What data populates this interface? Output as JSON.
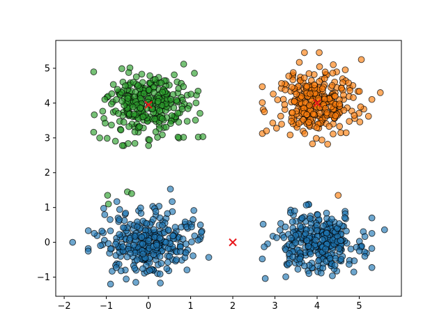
{
  "chart_data": {
    "type": "scatter",
    "title": "",
    "xlabel": "",
    "ylabel": "",
    "xlim": [
      -2.2,
      6.0
    ],
    "ylim": [
      -1.55,
      5.8
    ],
    "xticks": [
      -2,
      -1,
      0,
      1,
      2,
      3,
      4,
      5
    ],
    "yticks": [
      -1,
      0,
      1,
      2,
      3,
      4,
      5
    ],
    "grid": false,
    "legend": "none",
    "clusters": [
      {
        "color": "#2ca02c",
        "center": [
          0.0,
          3.95
        ],
        "spread": [
          0.5,
          0.45
        ],
        "count": 300
      },
      {
        "color": "#ff7f0e",
        "center": [
          4.0,
          4.0
        ],
        "spread": [
          0.5,
          0.45
        ],
        "count": 300
      },
      {
        "color": "#1f77b4",
        "center": [
          0.0,
          0.0
        ],
        "spread": [
          0.55,
          0.45
        ],
        "count": 300
      },
      {
        "color": "#1f77b4",
        "center": [
          4.0,
          0.0
        ],
        "spread": [
          0.5,
          0.42
        ],
        "count": 300
      }
    ],
    "outliers": [
      {
        "color": "#2ca02c",
        "points": [
          [
            -0.97,
            1.35
          ],
          [
            -0.95,
            1.1
          ],
          [
            -0.5,
            1.45
          ],
          [
            -0.4,
            1.4
          ]
        ]
      },
      {
        "color": "#1f77b4",
        "points": [
          [
            -1.8,
            0.0
          ],
          [
            0.52,
            1.53
          ],
          [
            2.72,
            0.52
          ],
          [
            2.77,
            -1.04
          ],
          [
            5.3,
            0.7
          ],
          [
            5.6,
            0.36
          ],
          [
            -0.9,
            -1.2
          ],
          [
            -0.3,
            -1.15
          ]
        ]
      },
      {
        "color": "#ff7f0e",
        "points": [
          [
            3.7,
            5.45
          ],
          [
            4.05,
            5.45
          ],
          [
            5.05,
            5.25
          ],
          [
            4.5,
            1.35
          ],
          [
            2.75,
            3.75
          ],
          [
            2.8,
            3.2
          ],
          [
            5.5,
            4.3
          ],
          [
            4.25,
            2.82
          ]
        ]
      }
    ],
    "centroids": {
      "marker": "x",
      "color": "#e8171b",
      "points": [
        [
          0.0,
          3.95
        ],
        [
          4.0,
          4.0
        ],
        [
          2.0,
          0.0
        ]
      ]
    },
    "seed": 7
  }
}
